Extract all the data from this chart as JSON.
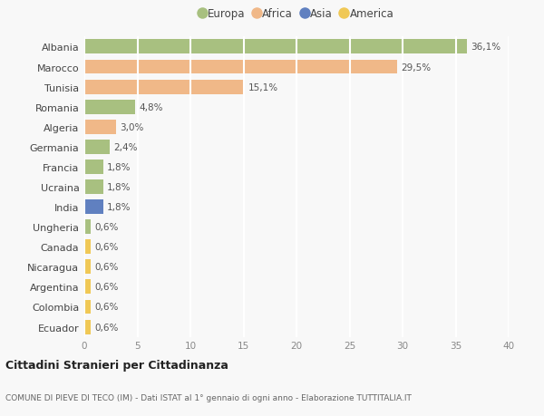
{
  "categories": [
    "Albania",
    "Marocco",
    "Tunisia",
    "Romania",
    "Algeria",
    "Germania",
    "Francia",
    "Ucraina",
    "India",
    "Ungheria",
    "Canada",
    "Nicaragua",
    "Argentina",
    "Colombia",
    "Ecuador"
  ],
  "values": [
    36.1,
    29.5,
    15.1,
    4.8,
    3.0,
    2.4,
    1.8,
    1.8,
    1.8,
    0.6,
    0.6,
    0.6,
    0.6,
    0.6,
    0.6
  ],
  "labels": [
    "36,1%",
    "29,5%",
    "15,1%",
    "4,8%",
    "3,0%",
    "2,4%",
    "1,8%",
    "1,8%",
    "1,8%",
    "0,6%",
    "0,6%",
    "0,6%",
    "0,6%",
    "0,6%",
    "0,6%"
  ],
  "continents": [
    "Europa",
    "Africa",
    "Africa",
    "Europa",
    "Africa",
    "Europa",
    "Europa",
    "Europa",
    "Asia",
    "Europa",
    "America",
    "America",
    "America",
    "America",
    "America"
  ],
  "colors": {
    "Europa": "#a8c080",
    "Africa": "#f0b888",
    "Asia": "#6080c0",
    "America": "#f0c855"
  },
  "legend_order": [
    "Europa",
    "Africa",
    "Asia",
    "America"
  ],
  "title": "Cittadini Stranieri per Cittadinanza",
  "subtitle": "COMUNE DI PIEVE DI TECO (IM) - Dati ISTAT al 1° gennaio di ogni anno - Elaborazione TUTTITALIA.IT",
  "xlim": [
    0,
    40
  ],
  "xticks": [
    0,
    5,
    10,
    15,
    20,
    25,
    30,
    35,
    40
  ],
  "background_color": "#f8f8f8",
  "grid_color": "#ffffff",
  "bar_height": 0.72
}
